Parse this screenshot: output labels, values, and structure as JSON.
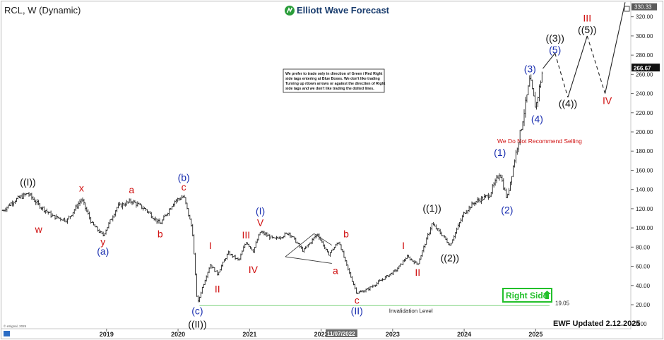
{
  "header": {
    "symbol": "RCL, W (Dynamic)",
    "brand": "Elliott Wave Forecast"
  },
  "footer": {
    "updated": "EWF Updated 2.12.2025",
    "copyright": "© eSignal, 2025",
    "date_badge": "11/07/2022"
  },
  "notice_lines": [
    "We prefer to trade only in direction of Green / Red Right",
    "side tags entering at Blue Boxes. We don't like trading",
    "Turning up /down arrows or against the direction of Right",
    "side tags and we don't like trading the dotted lines."
  ],
  "recommendation": "We Do Not Recommend Selling",
  "right_side_tag": "Right Side",
  "invalidation": {
    "label": "Invalidation Level",
    "value": "19.05",
    "level": 19.05
  },
  "chart_data": {
    "type": "ohlc",
    "title": "RCL, W (Dynamic)",
    "y_axis": {
      "ticks": [
        "0.00",
        "20.00",
        "40.00",
        "60.00",
        "80.00",
        "100.00",
        "120.00",
        "140.00",
        "160.00",
        "180.00",
        "200.00",
        "220.00",
        "240.00",
        "260.00",
        "280.00",
        "300.00",
        "320.00"
      ],
      "top_label": "330.33",
      "last_price": "266.67",
      "range": [
        -5,
        333
      ]
    },
    "x_axis": {
      "ticks": [
        "2019",
        "2020",
        "2021",
        "2022",
        "2023",
        "2024",
        "2025"
      ],
      "range": [
        2017.55,
        2026.3
      ]
    },
    "price_path": [
      [
        2017.55,
        118
      ],
      [
        2017.7,
        128
      ],
      [
        2017.9,
        136
      ],
      [
        2018.05,
        124
      ],
      [
        2018.25,
        112
      ],
      [
        2018.45,
        108
      ],
      [
        2018.65,
        130
      ],
      [
        2018.8,
        104
      ],
      [
        2018.95,
        92
      ],
      [
        2019.15,
        122
      ],
      [
        2019.35,
        128
      ],
      [
        2019.55,
        119
      ],
      [
        2019.75,
        104
      ],
      [
        2019.95,
        128
      ],
      [
        2020.08,
        133
      ],
      [
        2020.2,
        98
      ],
      [
        2020.27,
        20
      ],
      [
        2020.33,
        36
      ],
      [
        2020.45,
        62
      ],
      [
        2020.55,
        52
      ],
      [
        2020.7,
        74
      ],
      [
        2020.85,
        66
      ],
      [
        2020.95,
        86
      ],
      [
        2021.05,
        76
      ],
      [
        2021.15,
        96
      ],
      [
        2021.35,
        88
      ],
      [
        2021.55,
        95
      ],
      [
        2021.75,
        76
      ],
      [
        2021.95,
        94
      ],
      [
        2022.1,
        72
      ],
      [
        2022.25,
        86
      ],
      [
        2022.35,
        62
      ],
      [
        2022.5,
        32
      ],
      [
        2022.65,
        36
      ],
      [
        2022.85,
        46
      ],
      [
        2023.05,
        56
      ],
      [
        2023.2,
        70
      ],
      [
        2023.35,
        62
      ],
      [
        2023.55,
        104
      ],
      [
        2023.7,
        92
      ],
      [
        2023.8,
        82
      ],
      [
        2024.0,
        116
      ],
      [
        2024.15,
        127
      ],
      [
        2024.35,
        134
      ],
      [
        2024.5,
        158
      ],
      [
        2024.55,
        143
      ],
      [
        2024.6,
        130
      ],
      [
        2024.7,
        170
      ],
      [
        2024.8,
        205
      ],
      [
        2024.92,
        255
      ],
      [
        2025.0,
        225
      ],
      [
        2025.1,
        266
      ]
    ],
    "wave_labels": [
      {
        "text": "((I))",
        "x": 2017.9,
        "y": 144,
        "color": "#111111"
      },
      {
        "text": "w",
        "x": 2018.05,
        "y": 95,
        "color": "#d01010"
      },
      {
        "text": "x",
        "x": 2018.65,
        "y": 138,
        "color": "#d01010"
      },
      {
        "text": "y",
        "x": 2018.95,
        "y": 82,
        "color": "#d01010"
      },
      {
        "text": "(a)",
        "x": 2018.95,
        "y": 72,
        "color": "#1a2fb0"
      },
      {
        "text": "a",
        "x": 2019.35,
        "y": 136,
        "color": "#d01010"
      },
      {
        "text": "b",
        "x": 2019.75,
        "y": 90,
        "color": "#d01010"
      },
      {
        "text": "(b)",
        "x": 2020.08,
        "y": 149,
        "color": "#1a2fb0"
      },
      {
        "text": "c",
        "x": 2020.08,
        "y": 139,
        "color": "#d01010"
      },
      {
        "text": "I",
        "x": 2020.45,
        "y": 78,
        "color": "#d01010"
      },
      {
        "text": "II",
        "x": 2020.55,
        "y": 33,
        "color": "#d01010"
      },
      {
        "text": "(c)",
        "x": 2020.27,
        "y": 10,
        "color": "#1a2fb0"
      },
      {
        "text": "((II))",
        "x": 2020.27,
        "y": -4,
        "color": "#111111"
      },
      {
        "text": "III",
        "x": 2020.95,
        "y": 89,
        "color": "#d01010"
      },
      {
        "text": "IV",
        "x": 2021.05,
        "y": 53,
        "color": "#d01010"
      },
      {
        "text": "(I)",
        "x": 2021.15,
        "y": 114,
        "color": "#1a2fb0"
      },
      {
        "text": "V",
        "x": 2021.15,
        "y": 102,
        "color": "#d01010"
      },
      {
        "text": "b",
        "x": 2022.35,
        "y": 90,
        "color": "#d01010"
      },
      {
        "text": "a",
        "x": 2022.2,
        "y": 52,
        "color": "#d01010"
      },
      {
        "text": "c",
        "x": 2022.5,
        "y": 21,
        "color": "#d01010"
      },
      {
        "text": "(II)",
        "x": 2022.5,
        "y": 10,
        "color": "#1a2fb0"
      },
      {
        "text": "I",
        "x": 2023.15,
        "y": 78,
        "color": "#d01010"
      },
      {
        "text": "II",
        "x": 2023.35,
        "y": 50,
        "color": "#d01010"
      },
      {
        "text": "((1))",
        "x": 2023.55,
        "y": 117,
        "color": "#111111"
      },
      {
        "text": "((2))",
        "x": 2023.8,
        "y": 65,
        "color": "#111111"
      },
      {
        "text": "(1)",
        "x": 2024.5,
        "y": 175,
        "color": "#1a2fb0"
      },
      {
        "text": "(2)",
        "x": 2024.6,
        "y": 115,
        "color": "#1a2fb0"
      },
      {
        "text": "(3)",
        "x": 2024.92,
        "y": 262,
        "color": "#1a2fb0"
      },
      {
        "text": "(4)",
        "x": 2025.02,
        "y": 210,
        "color": "#1a2fb0"
      },
      {
        "text": "(5)",
        "x": 2025.27,
        "y": 282,
        "color": "#1a2fb0"
      },
      {
        "text": "((3))",
        "x": 2025.27,
        "y": 294,
        "color": "#111111"
      },
      {
        "text": "((4))",
        "x": 2025.45,
        "y": 226,
        "color": "#111111"
      },
      {
        "text": "((5))",
        "x": 2025.72,
        "y": 303,
        "color": "#111111"
      },
      {
        "text": "III",
        "x": 2025.72,
        "y": 315,
        "color": "#d01010"
      },
      {
        "text": "IV",
        "x": 2026.0,
        "y": 229,
        "color": "#d01010"
      }
    ],
    "projection": [
      {
        "from": [
          2025.1,
          266
        ],
        "to": [
          2025.27,
          282
        ],
        "dashed": false
      },
      {
        "from": [
          2025.27,
          282
        ],
        "to": [
          2025.45,
          236
        ],
        "dashed": true
      },
      {
        "from": [
          2025.45,
          236
        ],
        "to": [
          2025.72,
          300
        ],
        "dashed": false
      },
      {
        "from": [
          2025.72,
          300
        ],
        "to": [
          2025.97,
          240
        ],
        "dashed": true
      },
      {
        "from": [
          2025.97,
          240
        ],
        "to": [
          2026.25,
          335
        ],
        "dashed": false
      }
    ],
    "triangle": [
      [
        [
          2021.9,
          94
        ],
        [
          2022.15,
          82
        ]
      ],
      [
        [
          2021.5,
          70
        ],
        [
          2022.15,
          63
        ]
      ],
      [
        [
          2021.9,
          94
        ],
        [
          2021.5,
          70
        ]
      ]
    ],
    "colors": {
      "wave_red": "#d01010",
      "wave_blue": "#1a2fb0",
      "wave_black": "#111111",
      "invalidation": "#7fd27f",
      "right_side": "#22c02a"
    }
  }
}
